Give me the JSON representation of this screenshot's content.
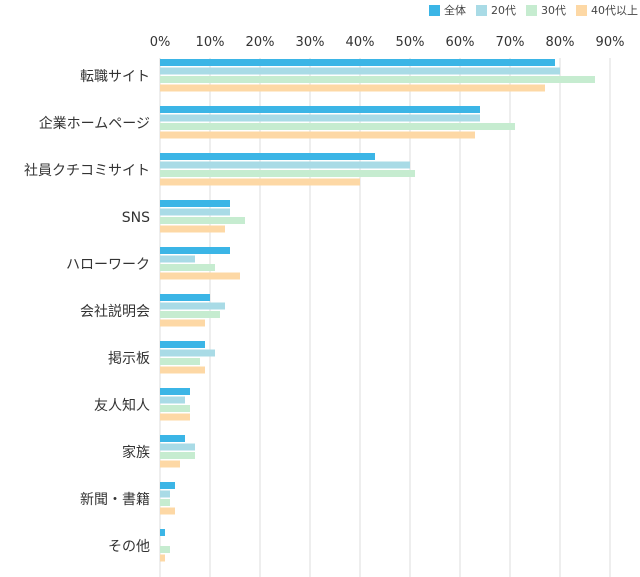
{
  "chart_data": {
    "type": "bar",
    "orientation": "horizontal",
    "categories": [
      "転職サイト",
      "企業ホームページ",
      "社員クチコミサイト",
      "SNS",
      "ハローワーク",
      "会社説明会",
      "掲示板",
      "友人知人",
      "家族",
      "新聞・書籍",
      "その他"
    ],
    "series": [
      {
        "name": "全体",
        "color": "#3bb5e6",
        "values": [
          79,
          64,
          43,
          14,
          14,
          10,
          9,
          6,
          5,
          3,
          1
        ]
      },
      {
        "name": "20代",
        "color": "#a9dbe6",
        "values": [
          80,
          64,
          50,
          14,
          7,
          13,
          11,
          5,
          7,
          2,
          0
        ]
      },
      {
        "name": "30代",
        "color": "#c6ecd0",
        "values": [
          87,
          71,
          51,
          17,
          11,
          12,
          8,
          6,
          7,
          2,
          2
        ]
      },
      {
        "name": "40代以上",
        "color": "#fdd8a5",
        "values": [
          77,
          63,
          40,
          13,
          16,
          9,
          9,
          6,
          4,
          3,
          1
        ]
      }
    ],
    "x_ticks": [
      "0%",
      "10%",
      "20%",
      "30%",
      "40%",
      "50%",
      "60%",
      "70%",
      "80%",
      "90%"
    ],
    "xlim": [
      0,
      90
    ],
    "grid": true,
    "legend_position": "top-right",
    "gridline_color": "#dcdcdc"
  }
}
